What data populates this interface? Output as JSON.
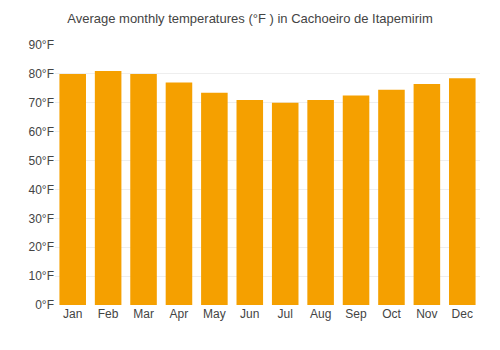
{
  "chart_data": {
    "type": "bar",
    "title": "Average monthly temperatures (°F ) in Cachoeiro de Itapemirim",
    "categories": [
      "Jan",
      "Feb",
      "Mar",
      "Apr",
      "May",
      "Jun",
      "Jul",
      "Aug",
      "Sep",
      "Oct",
      "Nov",
      "Dec"
    ],
    "values": [
      80,
      81,
      80,
      77,
      73.5,
      71,
      70,
      71,
      72.5,
      74.5,
      76.5,
      78.5
    ],
    "color": "#F5A000",
    "ylim": [
      0,
      90
    ],
    "yticks": [
      {
        "value": 0,
        "label": "0°F"
      },
      {
        "value": 10,
        "label": "10°F"
      },
      {
        "value": 20,
        "label": "20°F"
      },
      {
        "value": 30,
        "label": "30°F"
      },
      {
        "value": 40,
        "label": "40°F"
      },
      {
        "value": 50,
        "label": "50°F"
      },
      {
        "value": 60,
        "label": "60°F"
      },
      {
        "value": 70,
        "label": "70°F"
      },
      {
        "value": 80,
        "label": "80°F"
      },
      {
        "value": 90,
        "label": "90°F"
      }
    ],
    "grid": true
  }
}
